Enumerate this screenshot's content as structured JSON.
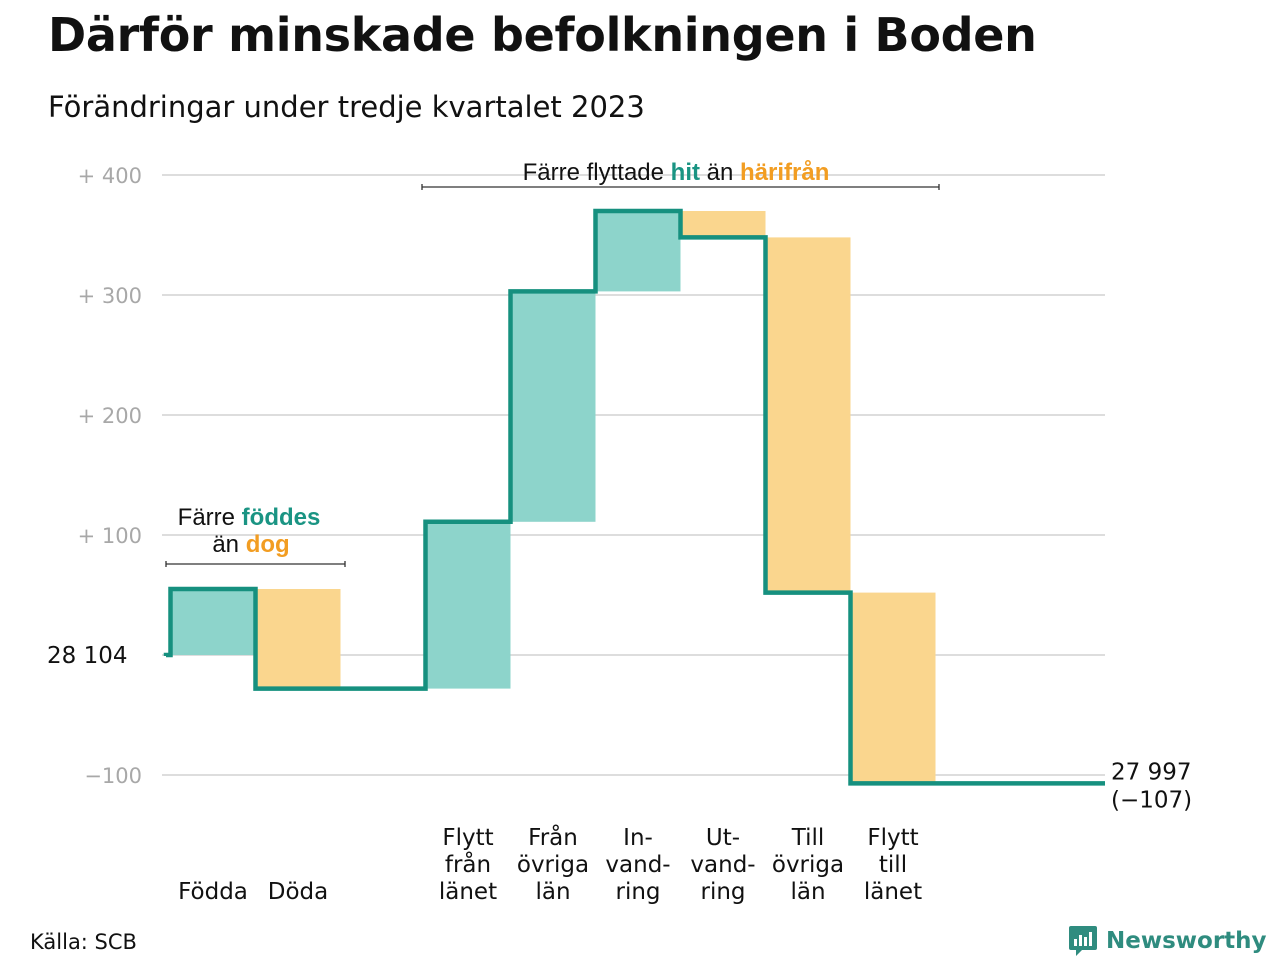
{
  "title": "Därför minskade befolkningen i Boden",
  "subtitle": "Förändringar under tredje kvartalet 2023",
  "source": "Källa: SCB",
  "brand": "Newsworthy",
  "colors": {
    "increase": "#8dd4cb",
    "decrease": "#fad68e",
    "line": "#16907f",
    "accent_increase": "#1a9483",
    "accent_decrease": "#f29d22",
    "grid": "#dddddd",
    "tick": "#a8a8a8"
  },
  "annotations": {
    "births_deaths": {
      "line1_prefix": "Färre ",
      "line1_highlight": "föddes",
      "line2_prefix": "än ",
      "line2_highlight": "dog"
    },
    "migration": {
      "prefix": "Färre flyttade ",
      "highlight1": "hit",
      "middle": " än ",
      "highlight2": "härifrån"
    }
  },
  "chart_data": {
    "type": "waterfall",
    "start_label": "28  104",
    "start_population": 28104,
    "end_label": "27 997",
    "end_change_label": "(−107)",
    "end_population": 27997,
    "y_tick_labels": [
      "+  400",
      "+  300",
      "+  200",
      "+  100",
      "−100"
    ],
    "y_ticks": [
      400,
      300,
      200,
      100,
      -100
    ],
    "ylim": [
      -110,
      420
    ],
    "grid": true,
    "steps": [
      {
        "label": "Födda",
        "change": 55
      },
      {
        "label": "Döda",
        "change": -83
      },
      {
        "label": "Flytt\nfrån\nlänet",
        "change": 139
      },
      {
        "label": "Från\növriga\nlän",
        "change": 192
      },
      {
        "label": "In-\nvand-\nring",
        "change": 67
      },
      {
        "label": "Ut-\nvand-\nring",
        "change": -22
      },
      {
        "label": "Till\növriga\nlän",
        "change": -296
      },
      {
        "label": "Flytt\ntill\nlänet",
        "change": -159
      }
    ]
  }
}
